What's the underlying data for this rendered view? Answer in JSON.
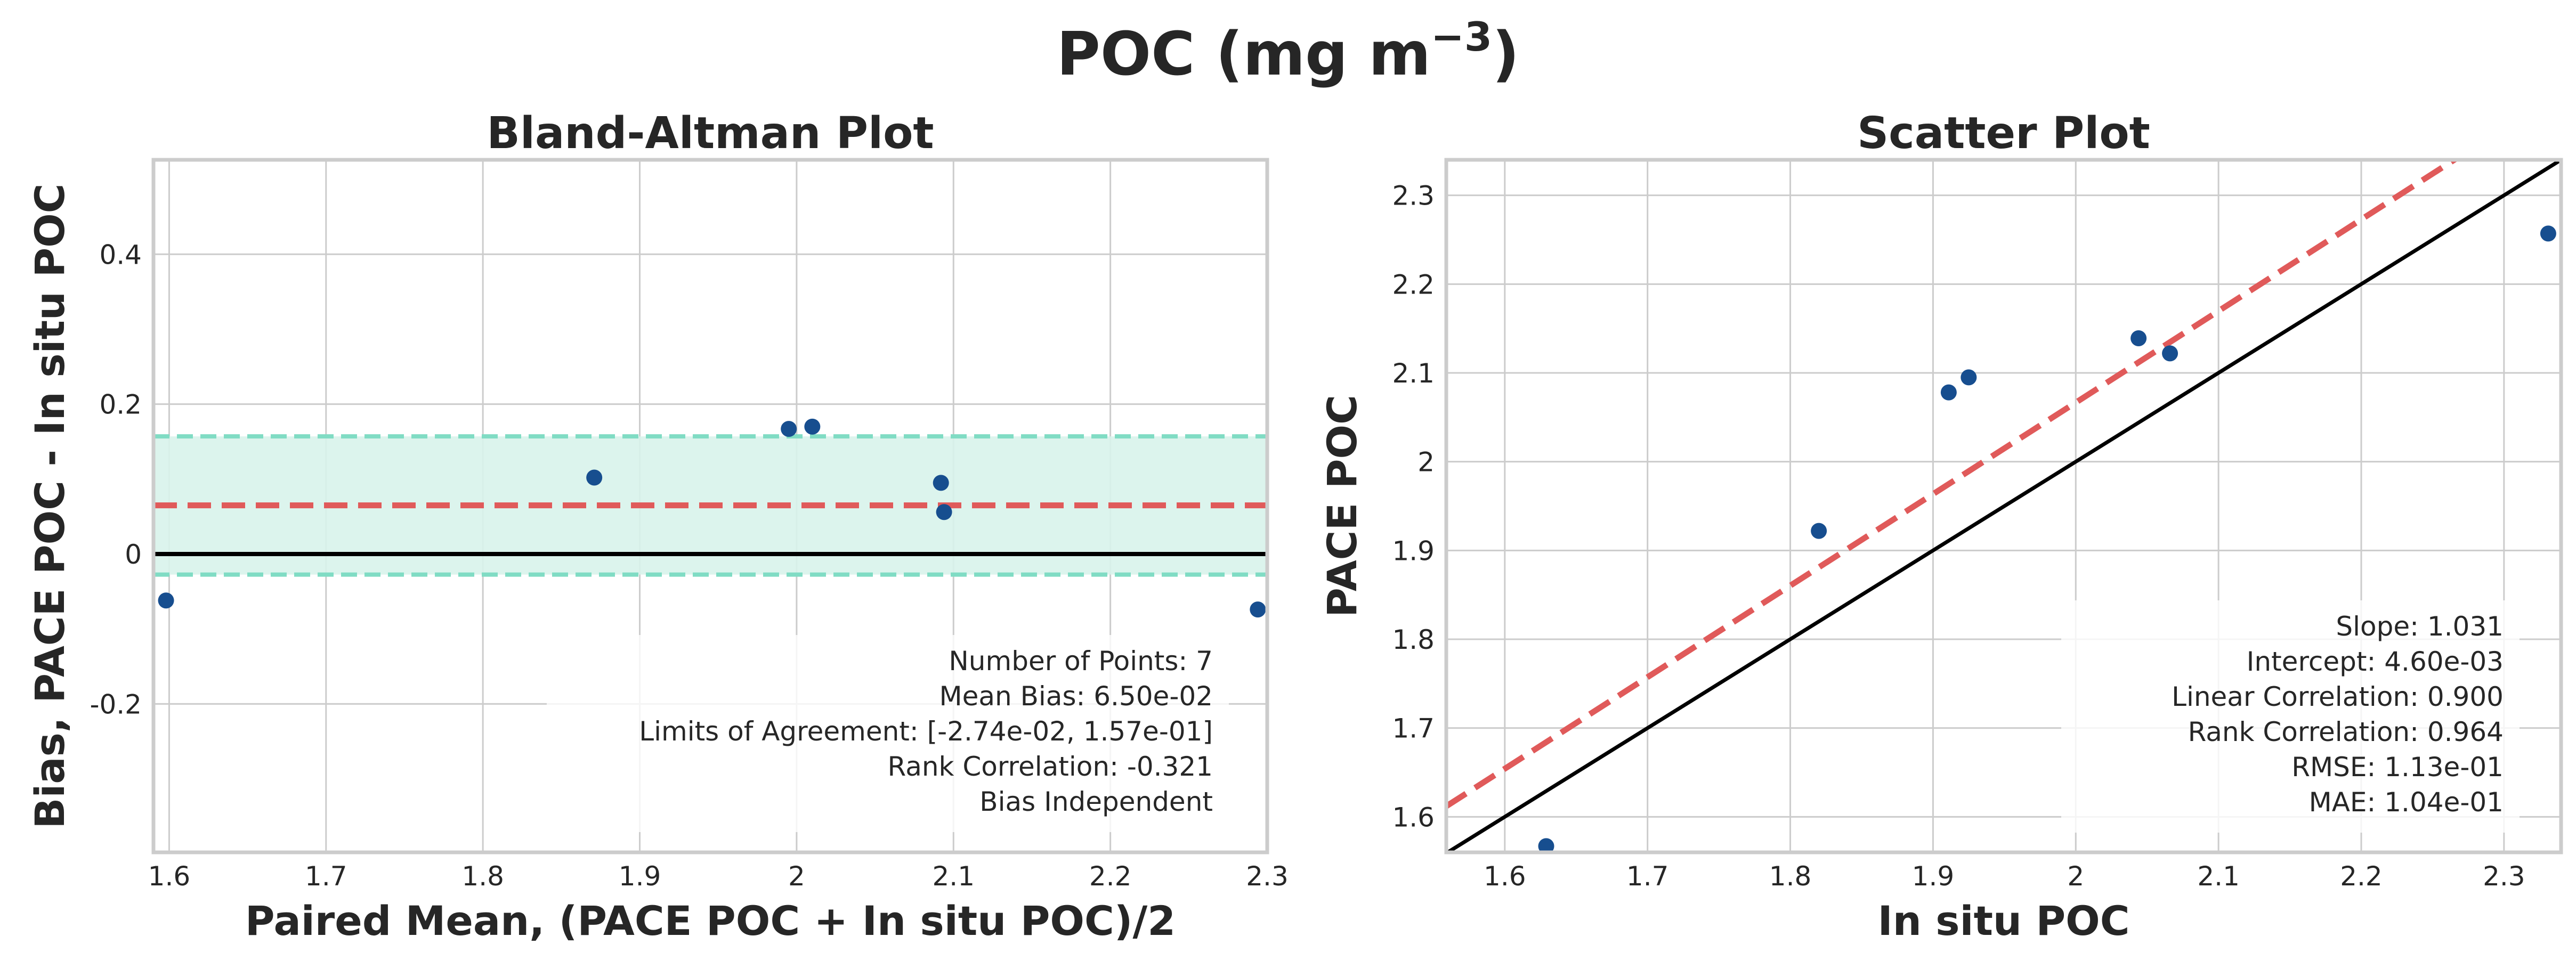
{
  "figure": {
    "title_main": "POC (mg m",
    "title_sup": "−3",
    "title_end": ")"
  },
  "colors": {
    "points": "#174e8f",
    "fit": "#e05a5a",
    "loa": "#80dcc4",
    "loa_fill": "#d8f3eb",
    "identity": "#000000"
  },
  "chart_data": [
    {
      "type": "scatter",
      "title": "Bland-Altman Plot",
      "xlabel": "Paired Mean, (PACE POC + In situ POC)/2",
      "ylabel": "Bias, PACE POC - In situ POC",
      "xlim": [
        1.59,
        2.3
      ],
      "ylim": [
        -0.398,
        0.526
      ],
      "xticks": [
        1.6,
        1.7,
        1.8,
        1.9,
        2.0,
        2.1,
        2.2,
        2.3
      ],
      "xtick_labels": [
        "1.6",
        "1.7",
        "1.8",
        "1.9",
        "2",
        "2.1",
        "2.2",
        "2.3"
      ],
      "yticks": [
        -0.2,
        0,
        0.2,
        0.4
      ],
      "ytick_labels": [
        "-0.2",
        "0",
        "0.2",
        "0.4"
      ],
      "grid": true,
      "x": [
        1.598,
        1.871,
        1.995,
        2.01,
        2.092,
        2.094,
        2.294
      ],
      "y": [
        -0.062,
        0.102,
        0.167,
        0.17,
        0.095,
        0.056,
        -0.074
      ],
      "mean_bias": 0.065,
      "loa": [
        -0.0274,
        0.157
      ],
      "zero_line": 0,
      "annotation": [
        "Number of Points: 7",
        "Mean Bias: 6.50e-02",
        "Limits of Agreement: [-2.74e-02, 1.57e-01]",
        "Rank Correlation: -0.321",
        "Bias Independent"
      ]
    },
    {
      "type": "scatter",
      "title": "Scatter Plot",
      "xlabel": "In situ POC",
      "ylabel": "PACE POC",
      "xlim": [
        1.559,
        2.34
      ],
      "ylim": [
        1.56,
        2.34
      ],
      "xticks": [
        1.6,
        1.7,
        1.8,
        1.9,
        2.0,
        2.1,
        2.2,
        2.3
      ],
      "xtick_labels": [
        "1.6",
        "1.7",
        "1.8",
        "1.9",
        "2",
        "2.1",
        "2.2",
        "2.3"
      ],
      "yticks": [
        1.6,
        1.7,
        1.8,
        1.9,
        2.0,
        2.1,
        2.2,
        2.3
      ],
      "ytick_labels": [
        "1.6",
        "1.7",
        "1.8",
        "1.9",
        "2",
        "2.1",
        "2.2",
        "2.3"
      ],
      "grid": true,
      "x": [
        1.629,
        1.82,
        1.911,
        1.925,
        2.044,
        2.066,
        2.331
      ],
      "y": [
        1.567,
        1.922,
        2.078,
        2.095,
        2.139,
        2.122,
        2.257
      ],
      "fit": {
        "slope": 1.031,
        "intercept": 0.0046
      },
      "identity_line": true,
      "annotation": [
        "Slope: 1.031",
        "Intercept: 4.60e-03",
        "Linear Correlation: 0.900",
        "Rank Correlation: 0.964",
        "RMSE: 1.13e-01",
        "MAE: 1.04e-01"
      ]
    }
  ]
}
